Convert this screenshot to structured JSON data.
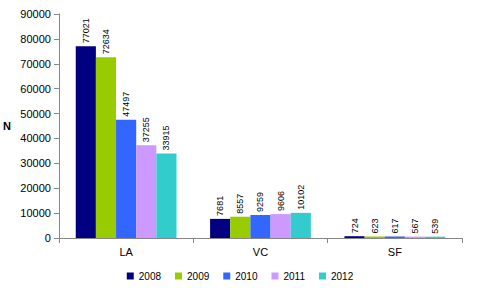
{
  "chart_data": {
    "type": "bar",
    "categories": [
      "LA",
      "VC",
      "SF"
    ],
    "series": [
      {
        "name": "2008",
        "color": "#000080",
        "values": [
          77021,
          7681,
          724
        ]
      },
      {
        "name": "2009",
        "color": "#99cc00",
        "values": [
          72634,
          8557,
          623
        ]
      },
      {
        "name": "2010",
        "color": "#3366ff",
        "values": [
          47497,
          9259,
          617
        ]
      },
      {
        "name": "2011",
        "color": "#cc99ff",
        "values": [
          37255,
          9606,
          567
        ]
      },
      {
        "name": "2012",
        "color": "#33cccc",
        "values": [
          33915,
          10102,
          539
        ]
      }
    ],
    "ylabel": "N",
    "ylim": [
      0,
      90000
    ],
    "yticks": [
      0,
      10000,
      20000,
      30000,
      40000,
      50000,
      60000,
      70000,
      80000,
      90000
    ],
    "grid": false,
    "legend": "bottom",
    "data_labels": true
  }
}
